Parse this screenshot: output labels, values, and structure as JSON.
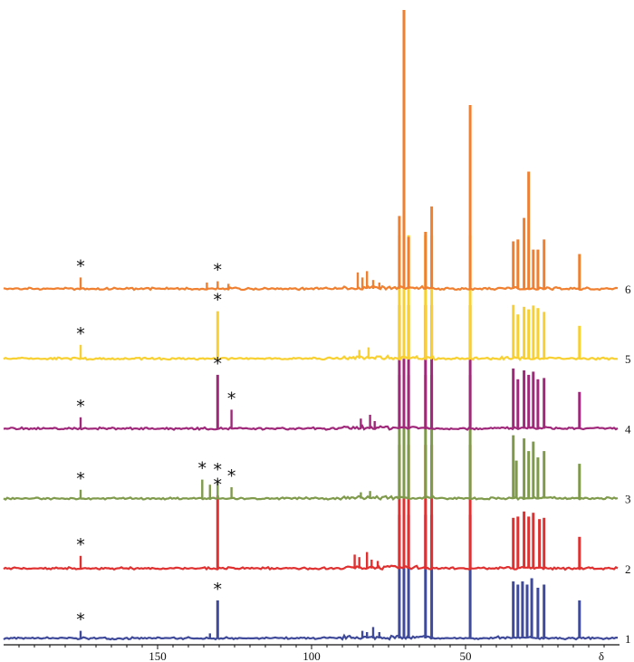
{
  "chart_data": {
    "type": "line",
    "title": "",
    "xlabel": "δ",
    "ylabel": "",
    "xlim": [
      200,
      0
    ],
    "x_reversed": true,
    "x_ticks": [
      150,
      100,
      50
    ],
    "x_tick_labels": [
      "150",
      "100",
      "50"
    ],
    "axis_symbol": "δ",
    "annotation_symbol": "*",
    "series": [
      {
        "name": "1",
        "color": "#3F4A9A",
        "baseline": 0,
        "peaks": [
          {
            "x": 175.0,
            "h": 0.12,
            "star": true
          },
          {
            "x": 130.5,
            "h": 0.6,
            "star": true
          },
          {
            "x": 133.0,
            "h": 0.08
          },
          {
            "x": 83.5,
            "h": 0.12
          },
          {
            "x": 82.0,
            "h": 0.1
          },
          {
            "x": 80.0,
            "h": 0.18
          },
          {
            "x": 78.0,
            "h": 0.1
          },
          {
            "x": 71.5,
            "h": 1.95
          },
          {
            "x": 70.0,
            "h": 1.95
          },
          {
            "x": 68.5,
            "h": 1.95
          },
          {
            "x": 63.0,
            "h": 1.95
          },
          {
            "x": 61.0,
            "h": 1.95
          },
          {
            "x": 48.5,
            "h": 1.95
          },
          {
            "x": 34.5,
            "h": 0.9
          },
          {
            "x": 33.0,
            "h": 0.85
          },
          {
            "x": 31.5,
            "h": 0.9
          },
          {
            "x": 30.0,
            "h": 0.85
          },
          {
            "x": 28.5,
            "h": 0.95
          },
          {
            "x": 26.5,
            "h": 0.8
          },
          {
            "x": 24.5,
            "h": 0.85
          },
          {
            "x": 13.0,
            "h": 0.6
          }
        ]
      },
      {
        "name": "2",
        "color": "#E03030",
        "baseline": 1,
        "peaks": [
          {
            "x": 175.0,
            "h": 0.2,
            "star": true
          },
          {
            "x": 130.5,
            "h": 1.15,
            "star": true
          },
          {
            "x": 86.0,
            "h": 0.22
          },
          {
            "x": 84.5,
            "h": 0.18
          },
          {
            "x": 82.0,
            "h": 0.26
          },
          {
            "x": 80.5,
            "h": 0.14
          },
          {
            "x": 78.5,
            "h": 0.12
          },
          {
            "x": 71.5,
            "h": 1.95
          },
          {
            "x": 70.0,
            "h": 1.95
          },
          {
            "x": 68.5,
            "h": 1.95
          },
          {
            "x": 63.0,
            "h": 1.95
          },
          {
            "x": 61.0,
            "h": 1.95
          },
          {
            "x": 48.5,
            "h": 1.95
          },
          {
            "x": 34.5,
            "h": 0.8
          },
          {
            "x": 33.0,
            "h": 0.82
          },
          {
            "x": 31.0,
            "h": 0.9
          },
          {
            "x": 29.5,
            "h": 0.82
          },
          {
            "x": 28.0,
            "h": 0.88
          },
          {
            "x": 26.0,
            "h": 0.78
          },
          {
            "x": 24.5,
            "h": 0.8
          },
          {
            "x": 13.0,
            "h": 0.5
          }
        ]
      },
      {
        "name": "3",
        "color": "#7E9A4A",
        "baseline": 2,
        "peaks": [
          {
            "x": 175.0,
            "h": 0.14,
            "star": true
          },
          {
            "x": 135.5,
            "h": 0.3,
            "star": true
          },
          {
            "x": 133.0,
            "h": 0.22
          },
          {
            "x": 130.5,
            "h": 0.28,
            "star": true
          },
          {
            "x": 126.0,
            "h": 0.18,
            "star": true
          },
          {
            "x": 84.0,
            "h": 0.1
          },
          {
            "x": 81.0,
            "h": 0.12
          },
          {
            "x": 71.5,
            "h": 1.95
          },
          {
            "x": 70.0,
            "h": 1.95
          },
          {
            "x": 68.5,
            "h": 1.95
          },
          {
            "x": 63.0,
            "h": 1.95
          },
          {
            "x": 61.0,
            "h": 1.95
          },
          {
            "x": 48.5,
            "h": 1.95
          },
          {
            "x": 34.5,
            "h": 1.0
          },
          {
            "x": 33.5,
            "h": 0.6
          },
          {
            "x": 31.0,
            "h": 0.95
          },
          {
            "x": 29.5,
            "h": 0.75
          },
          {
            "x": 28.0,
            "h": 0.9
          },
          {
            "x": 26.5,
            "h": 0.65
          },
          {
            "x": 24.5,
            "h": 0.75
          },
          {
            "x": 13.0,
            "h": 0.55
          }
        ]
      },
      {
        "name": "4",
        "color": "#A0287A",
        "baseline": 3,
        "peaks": [
          {
            "x": 175.0,
            "h": 0.18,
            "star": true
          },
          {
            "x": 130.5,
            "h": 0.85,
            "star": true
          },
          {
            "x": 126.0,
            "h": 0.3,
            "star": true
          },
          {
            "x": 84.0,
            "h": 0.16
          },
          {
            "x": 81.0,
            "h": 0.22
          },
          {
            "x": 79.5,
            "h": 0.12
          },
          {
            "x": 71.5,
            "h": 1.95
          },
          {
            "x": 70.0,
            "h": 1.95
          },
          {
            "x": 68.5,
            "h": 1.95
          },
          {
            "x": 63.0,
            "h": 1.95
          },
          {
            "x": 61.0,
            "h": 1.95
          },
          {
            "x": 48.5,
            "h": 1.95
          },
          {
            "x": 34.5,
            "h": 0.95
          },
          {
            "x": 33.0,
            "h": 0.78
          },
          {
            "x": 31.0,
            "h": 0.92
          },
          {
            "x": 29.5,
            "h": 0.85
          },
          {
            "x": 28.0,
            "h": 0.9
          },
          {
            "x": 26.5,
            "h": 0.78
          },
          {
            "x": 24.5,
            "h": 0.8
          },
          {
            "x": 13.0,
            "h": 0.58
          }
        ]
      },
      {
        "name": "5",
        "color": "#F8D030",
        "baseline": 4,
        "peaks": [
          {
            "x": 175.0,
            "h": 0.22,
            "star": true
          },
          {
            "x": 130.5,
            "h": 0.75,
            "star": true
          },
          {
            "x": 84.5,
            "h": 0.14
          },
          {
            "x": 81.5,
            "h": 0.18
          },
          {
            "x": 71.5,
            "h": 1.95
          },
          {
            "x": 70.0,
            "h": 1.95
          },
          {
            "x": 68.5,
            "h": 1.95
          },
          {
            "x": 63.0,
            "h": 1.95
          },
          {
            "x": 61.0,
            "h": 1.95
          },
          {
            "x": 48.5,
            "h": 1.95
          },
          {
            "x": 34.5,
            "h": 0.85
          },
          {
            "x": 33.0,
            "h": 0.7
          },
          {
            "x": 31.0,
            "h": 0.82
          },
          {
            "x": 29.5,
            "h": 0.78
          },
          {
            "x": 28.0,
            "h": 0.84
          },
          {
            "x": 26.5,
            "h": 0.8
          },
          {
            "x": 24.5,
            "h": 0.74
          },
          {
            "x": 13.0,
            "h": 0.52
          }
        ]
      },
      {
        "name": "6",
        "color": "#F07F2F",
        "baseline": 5,
        "peaks": [
          {
            "x": 175.0,
            "h": 0.18,
            "star": true
          },
          {
            "x": 134.0,
            "h": 0.1
          },
          {
            "x": 130.5,
            "h": 0.12,
            "star": true
          },
          {
            "x": 127.0,
            "h": 0.08
          },
          {
            "x": 85.0,
            "h": 0.26
          },
          {
            "x": 83.5,
            "h": 0.18
          },
          {
            "x": 82.0,
            "h": 0.28
          },
          {
            "x": 80.0,
            "h": 0.14
          },
          {
            "x": 78.0,
            "h": 0.1
          },
          {
            "x": 71.5,
            "h": 1.15
          },
          {
            "x": 70.0,
            "h": 4.4
          },
          {
            "x": 68.5,
            "h": 0.82
          },
          {
            "x": 63.0,
            "h": 0.9
          },
          {
            "x": 61.0,
            "h": 1.3
          },
          {
            "x": 48.5,
            "h": 2.9
          },
          {
            "x": 34.5,
            "h": 0.75
          },
          {
            "x": 33.0,
            "h": 0.78
          },
          {
            "x": 31.0,
            "h": 1.12
          },
          {
            "x": 29.5,
            "h": 1.85
          },
          {
            "x": 28.0,
            "h": 0.62
          },
          {
            "x": 26.5,
            "h": 0.62
          },
          {
            "x": 24.5,
            "h": 0.78
          },
          {
            "x": 13.0,
            "h": 0.55
          }
        ]
      }
    ]
  }
}
